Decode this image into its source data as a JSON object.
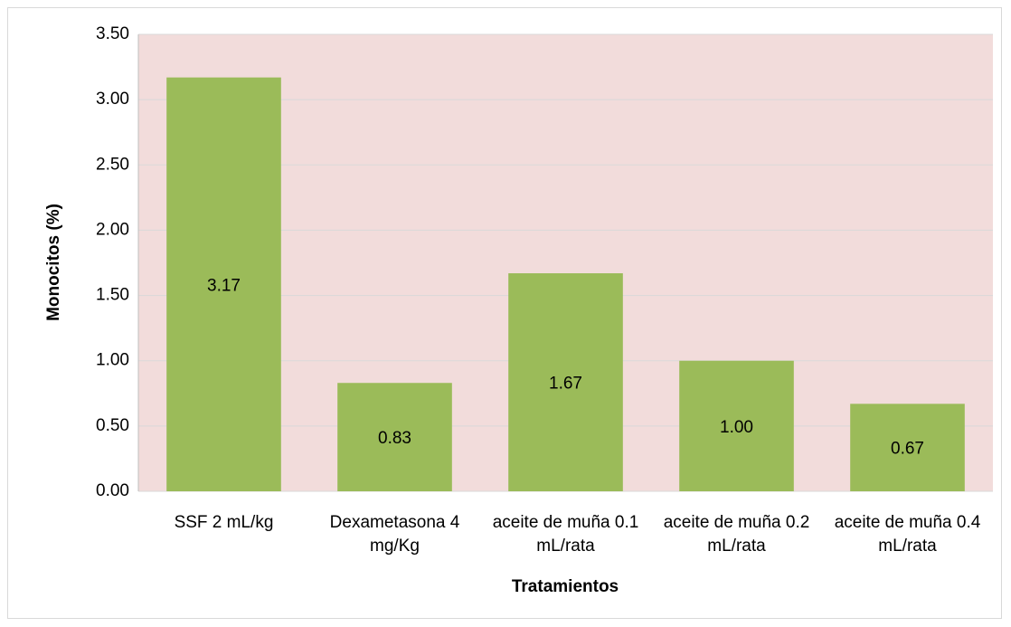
{
  "chart_data": {
    "type": "bar",
    "x_label": "Tratamientos",
    "y_label": "Monocitos (%)",
    "categories": [
      "SSF 2 mL/kg",
      "Dexametasona 4 mg/Kg",
      "aceite de muña 0.1 mL/rata",
      "aceite de muña 0.2 mL/rata",
      "aceite de muña 0.4 mL/rata"
    ],
    "values": [
      3.17,
      0.83,
      1.67,
      1.0,
      0.67
    ],
    "value_labels": [
      "3.17",
      "0.83",
      "1.67",
      "1.00",
      "0.67"
    ],
    "color": "#9bbb59",
    "ylim": [
      0,
      3.5
    ],
    "yticks": [
      {
        "value": 0,
        "label": "0.00"
      },
      {
        "value": 0.5,
        "label": "0.50"
      },
      {
        "value": 1,
        "label": "1.00"
      },
      {
        "value": 1.5,
        "label": "1.50"
      },
      {
        "value": 2,
        "label": "2.00"
      },
      {
        "value": 2.5,
        "label": "2.50"
      },
      {
        "value": 3,
        "label": "3.00"
      },
      {
        "value": 3.5,
        "label": "3.50"
      }
    ],
    "grid": true
  }
}
